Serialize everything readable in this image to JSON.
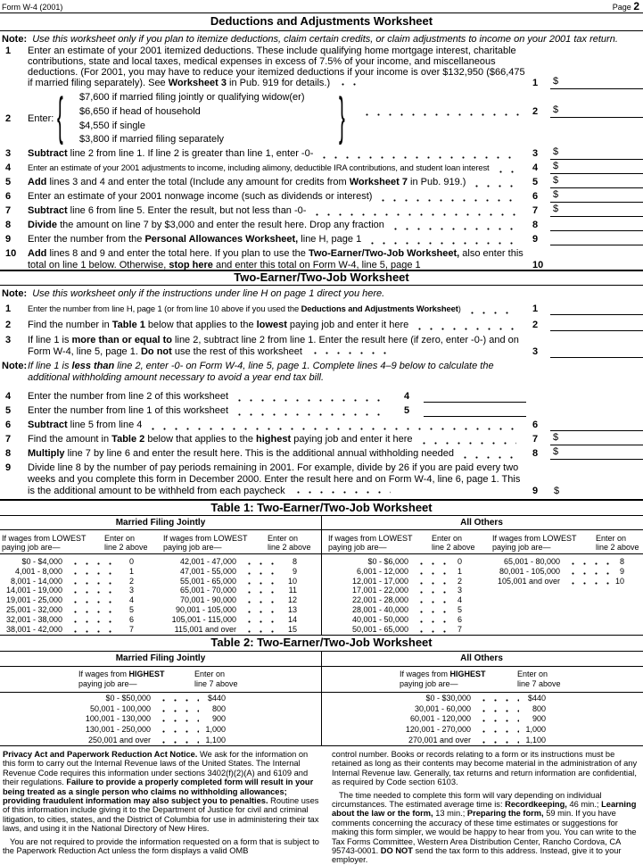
{
  "header": {
    "form": "Form W-4 (2001)",
    "page_label": "Page",
    "page_num": "2"
  },
  "ded": {
    "title": "Deductions and Adjustments Worksheet",
    "note_label": "Note:",
    "note": "Use this worksheet only if you plan to itemize deductions, claim certain credits, or claim adjustments to income on your 2001 tax return.",
    "line1": {
      "num": "1",
      "segs": [
        "Enter an estimate of your 2001 itemized deductions. These include qualifying home mortgage interest, charitable contributions, state and local taxes, medical expenses in excess of 7.5% of your income, and miscellaneous deductions. (For 2001, you may have to reduce your itemized deductions if your income is over $132,950 ($66,475 if married filing separately). See ",
        "Worksheet 3",
        " in Pub. 919 for details.)"
      ]
    },
    "line2": {
      "num": "2",
      "label": "Enter:",
      "options": [
        "$7,600 if married filing jointly or qualifying widow(er)",
        "$6,650 if head of household",
        "$4,550 if single",
        "$3,800 if married filing separately"
      ]
    },
    "lines": [
      {
        "num": "3",
        "segs": [
          "",
          "Subtract",
          " line 2 from line 1. If line 2 is greater than line 1, enter -0-"
        ]
      },
      {
        "num": "4",
        "segs": [
          "Enter an estimate of your 2001 adjustments to income, including alimony, deductible IRA contributions, and student loan interest"
        ]
      },
      {
        "num": "5",
        "segs": [
          "",
          "Add",
          " lines 3 and 4 and enter the total (Include any amount for credits from ",
          "Worksheet 7",
          " in Pub. 919.)"
        ]
      },
      {
        "num": "6",
        "segs": [
          "Enter an estimate of your 2001 nonwage income (such as dividends or interest)"
        ]
      },
      {
        "num": "7",
        "segs": [
          "",
          "Subtract",
          " line 6 from line 5. Enter the result, but not less than -0-"
        ]
      },
      {
        "num": "8",
        "segs": [
          "",
          "Divide",
          " the amount on line 7 by $3,000 and enter the result here. Drop any fraction"
        ]
      },
      {
        "num": "9",
        "segs": [
          "Enter the number from the ",
          "Personal Allowances Worksheet,",
          " line H, page 1"
        ]
      },
      {
        "num": "10",
        "segs": [
          "",
          "Add",
          " lines 8 and 9 and enter the total here. If you plan to use the ",
          "Two-Earner/Two-Job Worksheet,",
          " also enter this total on line 1 below. Otherwise, ",
          "stop here",
          " and enter this total on Form W-4, line 5, page 1"
        ]
      }
    ],
    "dollar": "$"
  },
  "two": {
    "title": "Two-Earner/Two-Job Worksheet",
    "note_label": "Note:",
    "note": "Use this worksheet only if the instructions under line H on page 1 direct you here.",
    "note2_label": "Note:",
    "note2": [
      "If line 1 is ",
      "less than",
      " line 2, enter -0- on Form W-4, line 5, page 1. Complete lines 4–9 below to calculate the additional withholding amount necessary to avoid a year end tax bill."
    ],
    "lines": [
      {
        "num": "1",
        "segs": [
          "Enter the number from line H, page 1 (or from line 10 above if you used the ",
          "Deductions and Adjustments Worksheet",
          ")"
        ]
      },
      {
        "num": "2",
        "segs": [
          "Find the number in ",
          "Table 1",
          " below that applies to the ",
          "lowest",
          " paying job and enter it here"
        ]
      },
      {
        "num": "3",
        "segs": [
          "If line 1 is ",
          "more than or equal to",
          " line 2, subtract line 2 from line 1. Enter the result here (if zero, enter -0-) and on Form W-4, line 5, page 1. ",
          "Do not",
          " use the rest of this worksheet"
        ]
      },
      {
        "num": "4",
        "segs": [
          "Enter the number from line 2 of this worksheet"
        ]
      },
      {
        "num": "5",
        "segs": [
          "Enter the number from line 1 of this worksheet"
        ]
      },
      {
        "num": "6",
        "segs": [
          "",
          "Subtract",
          " line 5 from line 4"
        ]
      },
      {
        "num": "7",
        "segs": [
          "Find the amount in ",
          "Table 2",
          " below that applies to the ",
          "highest",
          " paying job and enter it here"
        ]
      },
      {
        "num": "8",
        "segs": [
          "",
          "Multiply",
          " line 7 by line 6 and enter the result here. This is the additional annual withholding needed"
        ]
      },
      {
        "num": "9",
        "segs": [
          "Divide line 8 by the number of pay periods remaining in 2001. For example, divide by 26 if you are paid every two weeks and you complete this form in December 2000. Enter the result here and on Form W-4, line 6, page 1. This is the additional amount to be withheld from each paycheck"
        ]
      }
    ],
    "dollar": "$"
  },
  "table1": {
    "title": "Table 1: Two-Earner/Two-Job Worksheet",
    "groups": [
      {
        "name": "Married Filing Jointly",
        "col_wages": [
          "If wages from LOWEST",
          "paying job are—"
        ],
        "col_enter": [
          "Enter on",
          "line 2 above"
        ],
        "left": [
          [
            "$0 - $4,000",
            "0"
          ],
          [
            "4,001 - 8,000",
            "1"
          ],
          [
            "8,001 - 14,000",
            "2"
          ],
          [
            "14,001 - 19,000",
            "3"
          ],
          [
            "19,001 - 25,000",
            "4"
          ],
          [
            "25,001 - 32,000",
            "5"
          ],
          [
            "32,001 - 38,000",
            "6"
          ],
          [
            "38,001 - 42,000",
            "7"
          ]
        ],
        "right": [
          [
            "42,001 - 47,000",
            "8"
          ],
          [
            "47,001 - 55,000",
            "9"
          ],
          [
            "55,001 - 65,000",
            "10"
          ],
          [
            "65,001 - 70,000",
            "11"
          ],
          [
            "70,001 - 90,000",
            "12"
          ],
          [
            "90,001 - 105,000",
            "13"
          ],
          [
            "105,001 - 115,000",
            "14"
          ],
          [
            "115,001 and over",
            "15"
          ]
        ]
      },
      {
        "name": "All Others",
        "col_wages": [
          "If wages from LOWEST",
          "paying job are—"
        ],
        "col_enter": [
          "Enter on",
          "line 2 above"
        ],
        "left": [
          [
            "$0 - $6,000",
            "0"
          ],
          [
            "6,001 - 12,000",
            "1"
          ],
          [
            "12,001 - 17,000",
            "2"
          ],
          [
            "17,001 - 22,000",
            "3"
          ],
          [
            "22,001 - 28,000",
            "4"
          ],
          [
            "28,001 - 40,000",
            "5"
          ],
          [
            "40,001 - 50,000",
            "6"
          ],
          [
            "50,001 - 65,000",
            "7"
          ]
        ],
        "right": [
          [
            "65,001 - 80,000",
            "8"
          ],
          [
            "80,001 - 105,000",
            "9"
          ],
          [
            "105,001 and over",
            "10"
          ]
        ]
      }
    ]
  },
  "table2": {
    "title": "Table 2: Two-Earner/Two-Job Worksheet",
    "groups": [
      {
        "name": "Married Filing Jointly",
        "col_wages": [
          "If wages from ",
          "HIGHEST",
          "paying job are—"
        ],
        "col_enter": [
          "Enter on",
          "line 7 above"
        ],
        "rows": [
          [
            "$0 - $50,000",
            "$440"
          ],
          [
            "50,001 - 100,000",
            "800"
          ],
          [
            "100,001 - 130,000",
            "900"
          ],
          [
            "130,001 - 250,000",
            "1,000"
          ],
          [
            "250,001 and over",
            "1,100"
          ]
        ]
      },
      {
        "name": "All Others",
        "col_wages": [
          "If wages from ",
          "HIGHEST",
          "paying job are—"
        ],
        "col_enter": [
          "Enter on",
          "line 7 above"
        ],
        "rows": [
          [
            "$0 - $30,000",
            "$440"
          ],
          [
            "30,001 - 60,000",
            "800"
          ],
          [
            "60,001 - 120,000",
            "900"
          ],
          [
            "120,001 - 270,000",
            "1,000"
          ],
          [
            "270,001 and over",
            "1,100"
          ]
        ]
      }
    ]
  },
  "notice": {
    "left": [
      [
        "",
        "Privacy Act and Paperwork Reduction Act Notice.",
        " We ask for the information on this form to carry out the Internal Revenue laws of the United States. The Internal Revenue Code requires this information under sections 3402(f)(2)(A) and 6109 and their regulations. ",
        "Failure to provide a properly completed form will result in your being treated as a single person who claims no withholding allowances; providing fraudulent information may also subject you to penalties.",
        " Routine uses of this information include giving it to the Department of Justice for civil and criminal litigation, to cities, states, and the District of Columbia for use in administering their tax laws, and using it in the National Directory of New Hires."
      ],
      [
        "You are not required to provide the information requested on a form that is subject to the Paperwork Reduction Act unless the form displays a valid OMB"
      ]
    ],
    "right": [
      [
        "control number. Books or records relating to a form or its instructions must be retained as long as their contents may become material in the administration of any Internal Revenue law. Generally, tax returns and return information are confidential, as required by Code section 6103."
      ],
      [
        "The time needed to complete this form will vary depending on individual circumstances. The estimated average time is: ",
        "Recordkeeping,",
        " 46 min.; ",
        "Learning about the law or the form,",
        " 13 min.; ",
        "Preparing the form,",
        " 59 min. If you have comments concerning the accuracy of these time estimates or suggestions for making this form simpler, we would be happy to hear from you. You can write to the Tax Forms Committee, Western Area Distribution Center, Rancho Cordova, CA 95743-0001. ",
        "DO NOT",
        " send the tax form to this address. Instead, give it to your employer."
      ]
    ]
  }
}
